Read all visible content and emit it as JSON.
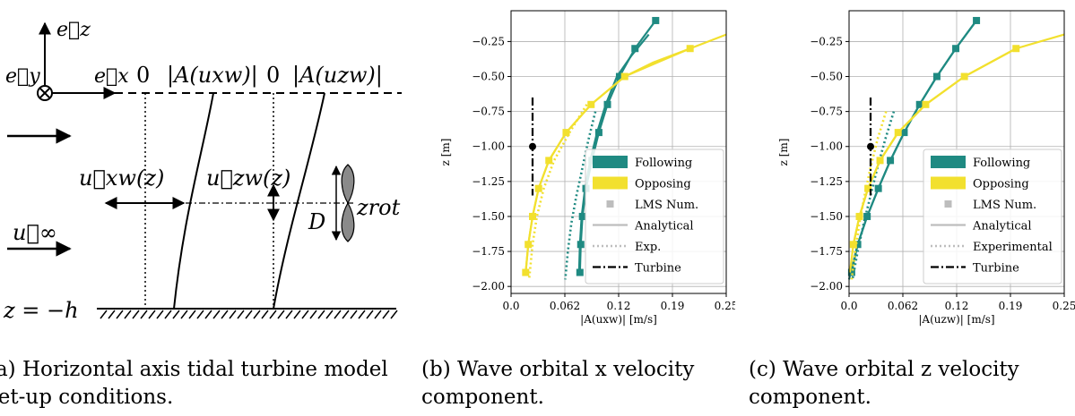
{
  "schematic": {
    "axis_ez": "e⃗z",
    "axis_ey": "e⃗y",
    "axis_ex": "e⃗x",
    "zero_x": "0",
    "amp_x": "|A(uxw)|",
    "zero_z": "0",
    "amp_z": "|A(uzw)|",
    "label_ux": "u⃗xw(z)",
    "label_uz": "u⃗zw(z)",
    "label_uinf": "u⃗∞",
    "label_D": "D",
    "label_zrot": "zrot",
    "label_bottom": "z = −h"
  },
  "captions": {
    "a": "(a) Horizontal axis tidal turbine model set-up conditions.",
    "b": "(b) Wave orbital x velocity component.",
    "c": "(c) Wave orbital z velocity component."
  },
  "colors": {
    "following": "#1f8a82",
    "opposing": "#f2e02e",
    "lms": "#bdbdbd",
    "turbine": "#000000"
  },
  "chart_data": [
    {
      "type": "line",
      "xlabel": "|A(uxw)| [m/s]",
      "ylabel": "z [m]",
      "xlim": [
        0.0,
        0.25
      ],
      "ylim": [
        -2.05,
        -0.03
      ],
      "xticks": [
        "0.0",
        "0.062",
        "0.12",
        "0.19",
        "0.25"
      ],
      "xtick_values": [
        0.0,
        0.0625,
        0.125,
        0.1875,
        0.25
      ],
      "yticks": [
        "−0.25",
        "−0.50",
        "−0.75",
        "−1.00",
        "−1.25",
        "−1.50",
        "−1.75",
        "−2.00"
      ],
      "ytick_values": [
        -0.25,
        -0.5,
        -0.75,
        -1.0,
        -1.25,
        -1.5,
        -1.75,
        -2.0
      ],
      "grid": true,
      "legend_position": "lower-right",
      "legend": [
        "Following",
        "Opposing",
        "LMS Num.",
        "Analytical",
        "Exp.",
        "Turbine"
      ],
      "series": [
        {
          "name": "Following",
          "kind": "lms",
          "x": [
            0.168,
            0.144,
            0.126,
            0.112,
            0.102,
            0.094,
            0.087,
            0.083,
            0.081,
            0.08
          ],
          "y": [
            -0.1,
            -0.3,
            -0.5,
            -0.7,
            -0.9,
            -1.1,
            -1.3,
            -1.5,
            -1.7,
            -1.9
          ]
        },
        {
          "name": "Following",
          "kind": "analytical",
          "x": [
            0.16,
            0.14,
            0.123,
            0.11,
            0.1,
            0.092,
            0.086,
            0.082,
            0.08,
            0.079
          ],
          "y": [
            -0.2,
            -0.35,
            -0.5,
            -0.7,
            -0.9,
            -1.1,
            -1.3,
            -1.5,
            -1.7,
            -1.9
          ]
        },
        {
          "name": "Following",
          "kind": "experimental",
          "x": [
            0.098,
            0.09,
            0.083,
            0.076,
            0.07,
            0.066,
            0.063
          ],
          "y": [
            -0.75,
            -0.95,
            -1.15,
            -1.35,
            -1.55,
            -1.75,
            -1.95
          ]
        },
        {
          "name": "Opposing",
          "kind": "lms",
          "x": [
            0.208,
            0.132,
            0.093,
            0.064,
            0.044,
            0.032,
            0.025,
            0.02,
            0.017
          ],
          "y": [
            -0.3,
            -0.5,
            -0.7,
            -0.9,
            -1.1,
            -1.3,
            -1.5,
            -1.7,
            -1.9
          ]
        },
        {
          "name": "Opposing",
          "kind": "analytical",
          "x": [
            0.25,
            0.208,
            0.165,
            0.132,
            0.093,
            0.064,
            0.044,
            0.032,
            0.025,
            0.02,
            0.017
          ],
          "y": [
            -0.2,
            -0.3,
            -0.4,
            -0.5,
            -0.7,
            -0.9,
            -1.1,
            -1.3,
            -1.5,
            -1.7,
            -1.9
          ]
        },
        {
          "name": "Opposing",
          "kind": "experimental",
          "x": [
            0.088,
            0.068,
            0.05,
            0.038,
            0.03,
            0.025,
            0.021
          ],
          "y": [
            -0.7,
            -0.9,
            -1.1,
            -1.3,
            -1.5,
            -1.7,
            -1.95
          ]
        }
      ],
      "turbine": {
        "x": 0.025,
        "y_top": -0.65,
        "y_bottom": -1.35,
        "hub_y": -1.0
      }
    },
    {
      "type": "line",
      "xlabel": "|A(uzw)| [m/s]",
      "ylabel": "z [m]",
      "xlim": [
        0.0,
        0.25
      ],
      "ylim": [
        -2.05,
        -0.03
      ],
      "xticks": [
        "0.0",
        "0.062",
        "0.12",
        "0.19",
        "0.25"
      ],
      "xtick_values": [
        0.0,
        0.0625,
        0.125,
        0.1875,
        0.25
      ],
      "yticks": [
        "−0.25",
        "−0.50",
        "−0.75",
        "−1.00",
        "−1.25",
        "−1.50",
        "−1.75",
        "−2.00"
      ],
      "ytick_values": [
        -0.25,
        -0.5,
        -0.75,
        -1.0,
        -1.25,
        -1.5,
        -1.75,
        -2.0
      ],
      "grid": true,
      "legend_position": "lower-right",
      "legend": [
        "Following",
        "Opposing",
        "LMS Num.",
        "Analytical",
        "Experimental",
        "Turbine"
      ],
      "series": [
        {
          "name": "Following",
          "kind": "lms",
          "x": [
            0.148,
            0.124,
            0.102,
            0.082,
            0.064,
            0.048,
            0.034,
            0.021,
            0.01,
            0.003
          ],
          "y": [
            -0.1,
            -0.3,
            -0.5,
            -0.7,
            -0.9,
            -1.1,
            -1.3,
            -1.5,
            -1.7,
            -1.9
          ]
        },
        {
          "name": "Following",
          "kind": "analytical",
          "x": [
            0.148,
            0.124,
            0.102,
            0.082,
            0.064,
            0.048,
            0.034,
            0.021,
            0.01,
            0.0
          ],
          "y": [
            -0.1,
            -0.3,
            -0.5,
            -0.7,
            -0.9,
            -1.1,
            -1.3,
            -1.5,
            -1.7,
            -1.95
          ]
        },
        {
          "name": "Following",
          "kind": "experimental",
          "x": [
            0.052,
            0.042,
            0.033,
            0.025,
            0.017,
            0.01,
            0.004
          ],
          "y": [
            -0.75,
            -0.95,
            -1.15,
            -1.35,
            -1.55,
            -1.75,
            -1.95
          ]
        },
        {
          "name": "Opposing",
          "kind": "lms",
          "x": [
            0.194,
            0.134,
            0.089,
            0.057,
            0.036,
            0.022,
            0.012,
            0.005
          ],
          "y": [
            -0.3,
            -0.5,
            -0.7,
            -0.9,
            -1.1,
            -1.3,
            -1.5,
            -1.7
          ]
        },
        {
          "name": "Opposing",
          "kind": "analytical",
          "x": [
            0.25,
            0.194,
            0.134,
            0.089,
            0.057,
            0.036,
            0.022,
            0.012,
            0.005,
            0.001
          ],
          "y": [
            -0.2,
            -0.3,
            -0.5,
            -0.7,
            -0.9,
            -1.1,
            -1.3,
            -1.5,
            -1.7,
            -1.9
          ]
        },
        {
          "name": "Opposing",
          "kind": "experimental",
          "x": [
            0.043,
            0.033,
            0.025,
            0.018,
            0.012,
            0.007,
            0.003
          ],
          "y": [
            -0.75,
            -0.95,
            -1.15,
            -1.35,
            -1.55,
            -1.75,
            -1.95
          ]
        }
      ],
      "turbine": {
        "x": 0.025,
        "y_top": -0.65,
        "y_bottom": -1.35,
        "hub_y": -1.0
      }
    }
  ]
}
